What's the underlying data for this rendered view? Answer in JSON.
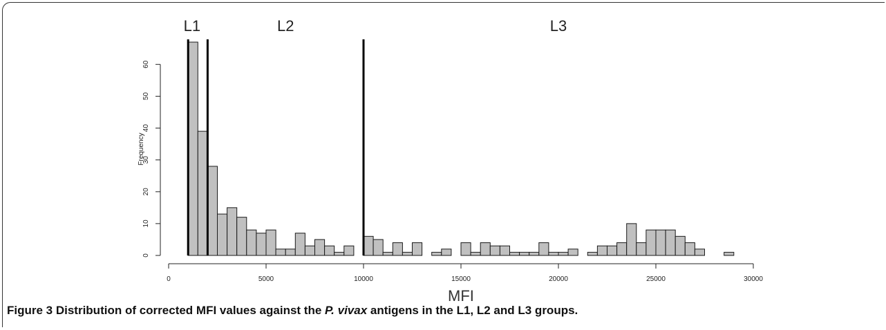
{
  "chart_data": {
    "type": "bar",
    "xlabel": "MFI",
    "ylabel": "Frequency",
    "xlim": [
      0,
      30000
    ],
    "ylim": [
      0,
      67
    ],
    "x_ticks": [
      0,
      5000,
      10000,
      15000,
      20000,
      25000,
      30000
    ],
    "y_ticks": [
      0,
      10,
      20,
      30,
      40,
      50,
      60
    ],
    "bin_width": 500,
    "bin_starts": [
      1000,
      1500,
      2000,
      2500,
      3000,
      3500,
      4000,
      4500,
      5000,
      5500,
      6000,
      6500,
      7000,
      7500,
      8000,
      8500,
      9000,
      9500,
      10000,
      10500,
      11000,
      11500,
      12000,
      12500,
      13000,
      13500,
      14000,
      14500,
      15000,
      15500,
      16000,
      16500,
      17000,
      17500,
      18000,
      18500,
      19000,
      19500,
      20000,
      20500,
      21000,
      21500,
      22000,
      22500,
      23000,
      23500,
      24000,
      24500,
      25000,
      25500,
      26000,
      26500,
      27000,
      27500,
      28000,
      28500
    ],
    "values": [
      67,
      39,
      28,
      13,
      15,
      12,
      8,
      7,
      8,
      2,
      2,
      7,
      3,
      5,
      3,
      1,
      3,
      0,
      6,
      5,
      1,
      4,
      1,
      4,
      0,
      1,
      2,
      0,
      4,
      1,
      4,
      3,
      3,
      1,
      1,
      1,
      4,
      1,
      1,
      2,
      0,
      1,
      3,
      3,
      4,
      10,
      4,
      8,
      8,
      8,
      6,
      4,
      2,
      0,
      0,
      1
    ],
    "thresholds": [
      1000,
      2000,
      10000
    ],
    "group_labels": [
      {
        "text": "L1",
        "x": 1200
      },
      {
        "text": "L2",
        "x": 6000
      },
      {
        "text": "L3",
        "x": 20000
      }
    ],
    "bar_color": "#c0c0c0"
  },
  "caption": {
    "label": "Figure 3",
    "text_before": " Distribution of corrected MFI values against the ",
    "species": "P. vivax",
    "text_after": " antigens in the L1, L2 and L3 groups."
  }
}
